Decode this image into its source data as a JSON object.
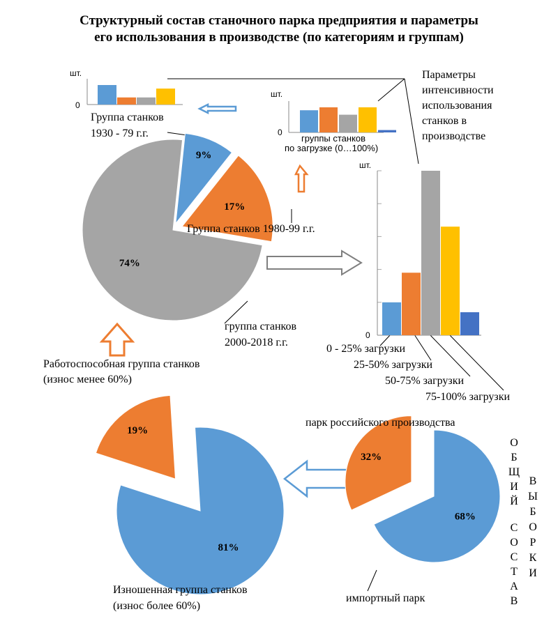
{
  "title": {
    "line1": "Структурный состав станочного парка предприятия и параметры",
    "line2": "его использования в производстве  (по категориям и группам)"
  },
  "colors": {
    "blue": "#5B9BD5",
    "orange": "#ED7D31",
    "gray": "#A5A5A5",
    "yellow": "#FFC000",
    "navy": "#4472C4"
  },
  "labels": {
    "params": [
      "Параметры",
      "интенсивности",
      "использования",
      "станков в",
      "производстве"
    ],
    "small_chart_group": [
      "Группа станков",
      "1930 - 79 г.г."
    ],
    "small_chart_unit": "шт.",
    "small_chart_zero": "0",
    "mini_chart_unit": "шт.",
    "mini_chart_zero": "0",
    "mini_chart_caption": [
      "группы станков",
      "по загрузке (0…100%)"
    ],
    "group_1980": "Группа станков 1980-99 г.г.",
    "group_2000": [
      "группа станков",
      "2000-2018 г.г."
    ],
    "big_chart_unit": "шт.",
    "big_chart_zero": "0",
    "load_labels": [
      "0 - 25% загрузки",
      "25-50% загрузки",
      "50-75% загрузки",
      "75-100% загрузки"
    ],
    "working_group": [
      "Работоспособная группа станков",
      "(износ менее 60%)"
    ],
    "worn_group": [
      "Изношенная группа станков",
      "(износ более 60%)"
    ],
    "russian_park": "парк российского производства",
    "import_park": "импортный парк",
    "vertical_left": "ОБЩИЙ СОСТАВ",
    "vertical_right": "ВЫБОРКИ"
  },
  "chart_data": [
    {
      "type": "pie",
      "name": "",
      "categories": [
        "Группа станков 1930 - 79 г.г.",
        "Группа станков 1980-99 г.г.",
        "группа станков 2000-2018 г.г."
      ],
      "values": [
        9,
        17,
        74
      ],
      "value_labels": [
        "9%",
        "17%",
        "74%"
      ],
      "colors": [
        "#5B9BD5",
        "#ED7D31",
        "#A5A5A5"
      ]
    },
    {
      "type": "pie",
      "name": "",
      "categories": [
        "Работоспособная группа станков (износ менее 60%)",
        "Изношенная группа станков (износ более 60%)"
      ],
      "values": [
        19,
        81
      ],
      "value_labels": [
        "19%",
        "81%"
      ],
      "colors": [
        "#ED7D31",
        "#5B9BD5"
      ]
    },
    {
      "type": "pie",
      "name": "",
      "categories": [
        "парк российского производства",
        "импортный парк"
      ],
      "values": [
        68,
        32
      ],
      "value_labels": [
        "68%",
        "32%"
      ],
      "colors": [
        "#5B9BD5",
        "#ED7D31"
      ]
    },
    {
      "type": "bar",
      "name": "",
      "ylabel": "шт.",
      "categories": [
        "0 - 25% загрузки",
        "25-50% загрузки",
        "50-75% загрузки",
        "75-100% загрузки",
        ""
      ],
      "values": [
        20,
        38,
        100,
        66,
        14
      ],
      "colors": [
        "#5B9BD5",
        "#ED7D31",
        "#A5A5A5",
        "#FFC000",
        "#4472C4"
      ],
      "grid": true
    },
    {
      "type": "bar",
      "name": "",
      "ylabel": "шт.",
      "categories": [
        "",
        "",
        "",
        ""
      ],
      "values": [
        55,
        20,
        20,
        45
      ],
      "colors": [
        "#5B9BD5",
        "#ED7D31",
        "#A5A5A5",
        "#FFC000"
      ]
    },
    {
      "type": "bar",
      "name": "",
      "ylabel": "шт.",
      "categories": [
        "",
        "",
        "",
        "",
        ""
      ],
      "values": [
        75,
        85,
        60,
        85,
        8
      ],
      "colors": [
        "#5B9BD5",
        "#ED7D31",
        "#A5A5A5",
        "#FFC000",
        "#4472C4"
      ]
    }
  ]
}
